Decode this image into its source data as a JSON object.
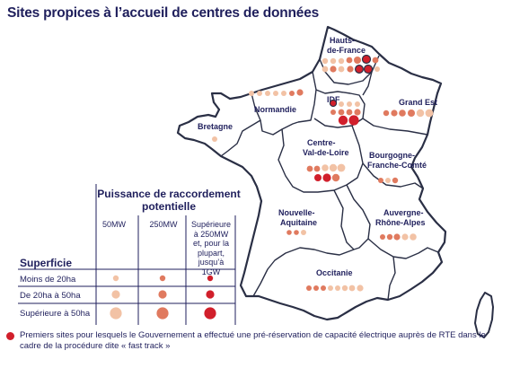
{
  "title": "Sites propices à l’accueil de centres de données",
  "regions": [
    {
      "key": "hdf",
      "name_lines": [
        "Hauts-",
        "de-France"
      ]
    },
    {
      "key": "normandie",
      "name_lines": [
        "Normandie"
      ]
    },
    {
      "key": "idf",
      "name_lines": [
        "IDF"
      ]
    },
    {
      "key": "grandest",
      "name_lines": [
        "Grand Est"
      ]
    },
    {
      "key": "bretagne",
      "name_lines": [
        "Bretagne"
      ]
    },
    {
      "key": "cvl",
      "name_lines": [
        "Centre-",
        "Val-de-Loire"
      ]
    },
    {
      "key": "bfc",
      "name_lines": [
        "Bourgogne-",
        "Franche-Comté"
      ]
    },
    {
      "key": "na",
      "name_lines": [
        "Nouvelle-",
        "Aquitaine"
      ]
    },
    {
      "key": "ara",
      "name_lines": [
        "Auvergne-",
        "Rhône-Alpes"
      ]
    },
    {
      "key": "occitanie",
      "name_lines": [
        "Occitanie"
      ]
    }
  ],
  "legend": {
    "power_title": "Puissance de raccordement potentielle",
    "columns": [
      "50MW",
      "250MW",
      "Supérieure à 250MW et, pour la plupart, jusqu’à 1GW"
    ],
    "area_title": "Superficie",
    "rows": [
      "Moins de 20ha",
      "De 20ha à 50ha",
      "Supérieure à 50ha"
    ]
  },
  "footnote": "Premiers sites pour lesquels le Gouvernement a effectué une pré-réservation de capacité électrique auprès de RTE dans le cadre de la procédure dite « fast track »",
  "colors": {
    "light": "#f2c2a5",
    "medium": "#e07a5f",
    "dark": "#d11f2b",
    "text": "#1f1f5c",
    "outline": "#2a2f45"
  }
}
